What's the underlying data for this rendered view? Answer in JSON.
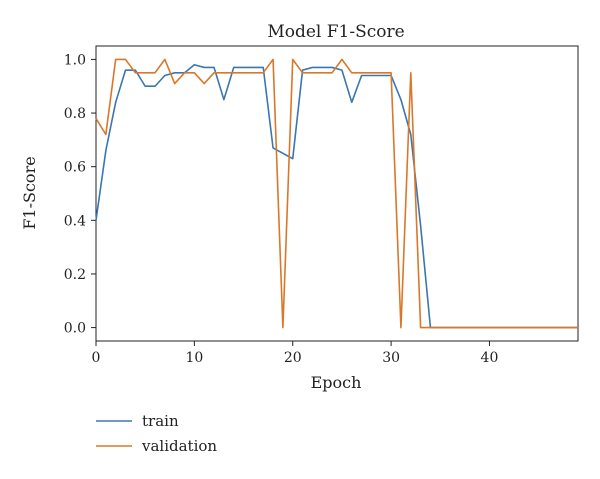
{
  "chart_data": {
    "type": "line",
    "title": "Model F1-Score",
    "xlabel": "Epoch",
    "ylabel": "F1-Score",
    "xlim": [
      0,
      49
    ],
    "ylim": [
      -0.05,
      1.05
    ],
    "xticks": [
      0,
      10,
      20,
      30,
      40
    ],
    "yticks": [
      0.0,
      0.2,
      0.4,
      0.6,
      0.8,
      1.0
    ],
    "xtick_labels": [
      "0",
      "10",
      "20",
      "30",
      "40"
    ],
    "ytick_labels": [
      "0.0",
      "0.2",
      "0.4",
      "0.6",
      "0.8",
      "1.0"
    ],
    "grid": false,
    "legend_position": "below",
    "series": [
      {
        "name": "train",
        "color": "#3a76b0",
        "x": [
          0,
          1,
          2,
          3,
          4,
          5,
          6,
          7,
          8,
          9,
          10,
          11,
          12,
          13,
          14,
          15,
          16,
          17,
          18,
          19,
          20,
          21,
          22,
          23,
          24,
          25,
          26,
          27,
          28,
          29,
          30,
          31,
          32,
          33,
          34,
          35,
          36,
          37,
          38,
          39,
          40,
          41,
          42,
          43,
          44,
          45,
          46,
          47,
          48,
          49
        ],
        "y": [
          0.4,
          0.66,
          0.84,
          0.96,
          0.96,
          0.9,
          0.9,
          0.94,
          0.95,
          0.95,
          0.98,
          0.97,
          0.97,
          0.85,
          0.97,
          0.97,
          0.97,
          0.97,
          0.67,
          0.65,
          0.63,
          0.96,
          0.97,
          0.97,
          0.97,
          0.96,
          0.84,
          0.94,
          0.94,
          0.94,
          0.94,
          0.85,
          0.72,
          0.38,
          0.0,
          0.0,
          0.0,
          0.0,
          0.0,
          0.0,
          0.0,
          0.0,
          0.0,
          0.0,
          0.0,
          0.0,
          0.0,
          0.0,
          0.0,
          0.0
        ]
      },
      {
        "name": "validation",
        "color": "#d9782b",
        "x": [
          0,
          1,
          2,
          3,
          4,
          5,
          6,
          7,
          8,
          9,
          10,
          11,
          12,
          13,
          14,
          15,
          16,
          17,
          18,
          19,
          20,
          21,
          22,
          23,
          24,
          25,
          26,
          27,
          28,
          29,
          30,
          31,
          32,
          33,
          34,
          35,
          36,
          37,
          38,
          39,
          40,
          41,
          42,
          43,
          44,
          45,
          46,
          47,
          48,
          49
        ],
        "y": [
          0.78,
          0.72,
          1.0,
          1.0,
          0.95,
          0.95,
          0.95,
          1.0,
          0.91,
          0.95,
          0.95,
          0.91,
          0.95,
          0.95,
          0.95,
          0.95,
          0.95,
          0.95,
          1.0,
          0.0,
          1.0,
          0.95,
          0.95,
          0.95,
          0.95,
          1.0,
          0.95,
          0.95,
          0.95,
          0.95,
          0.95,
          0.0,
          0.95,
          0.0,
          0.0,
          0.0,
          0.0,
          0.0,
          0.0,
          0.0,
          0.0,
          0.0,
          0.0,
          0.0,
          0.0,
          0.0,
          0.0,
          0.0,
          0.0,
          0.0
        ]
      }
    ]
  }
}
